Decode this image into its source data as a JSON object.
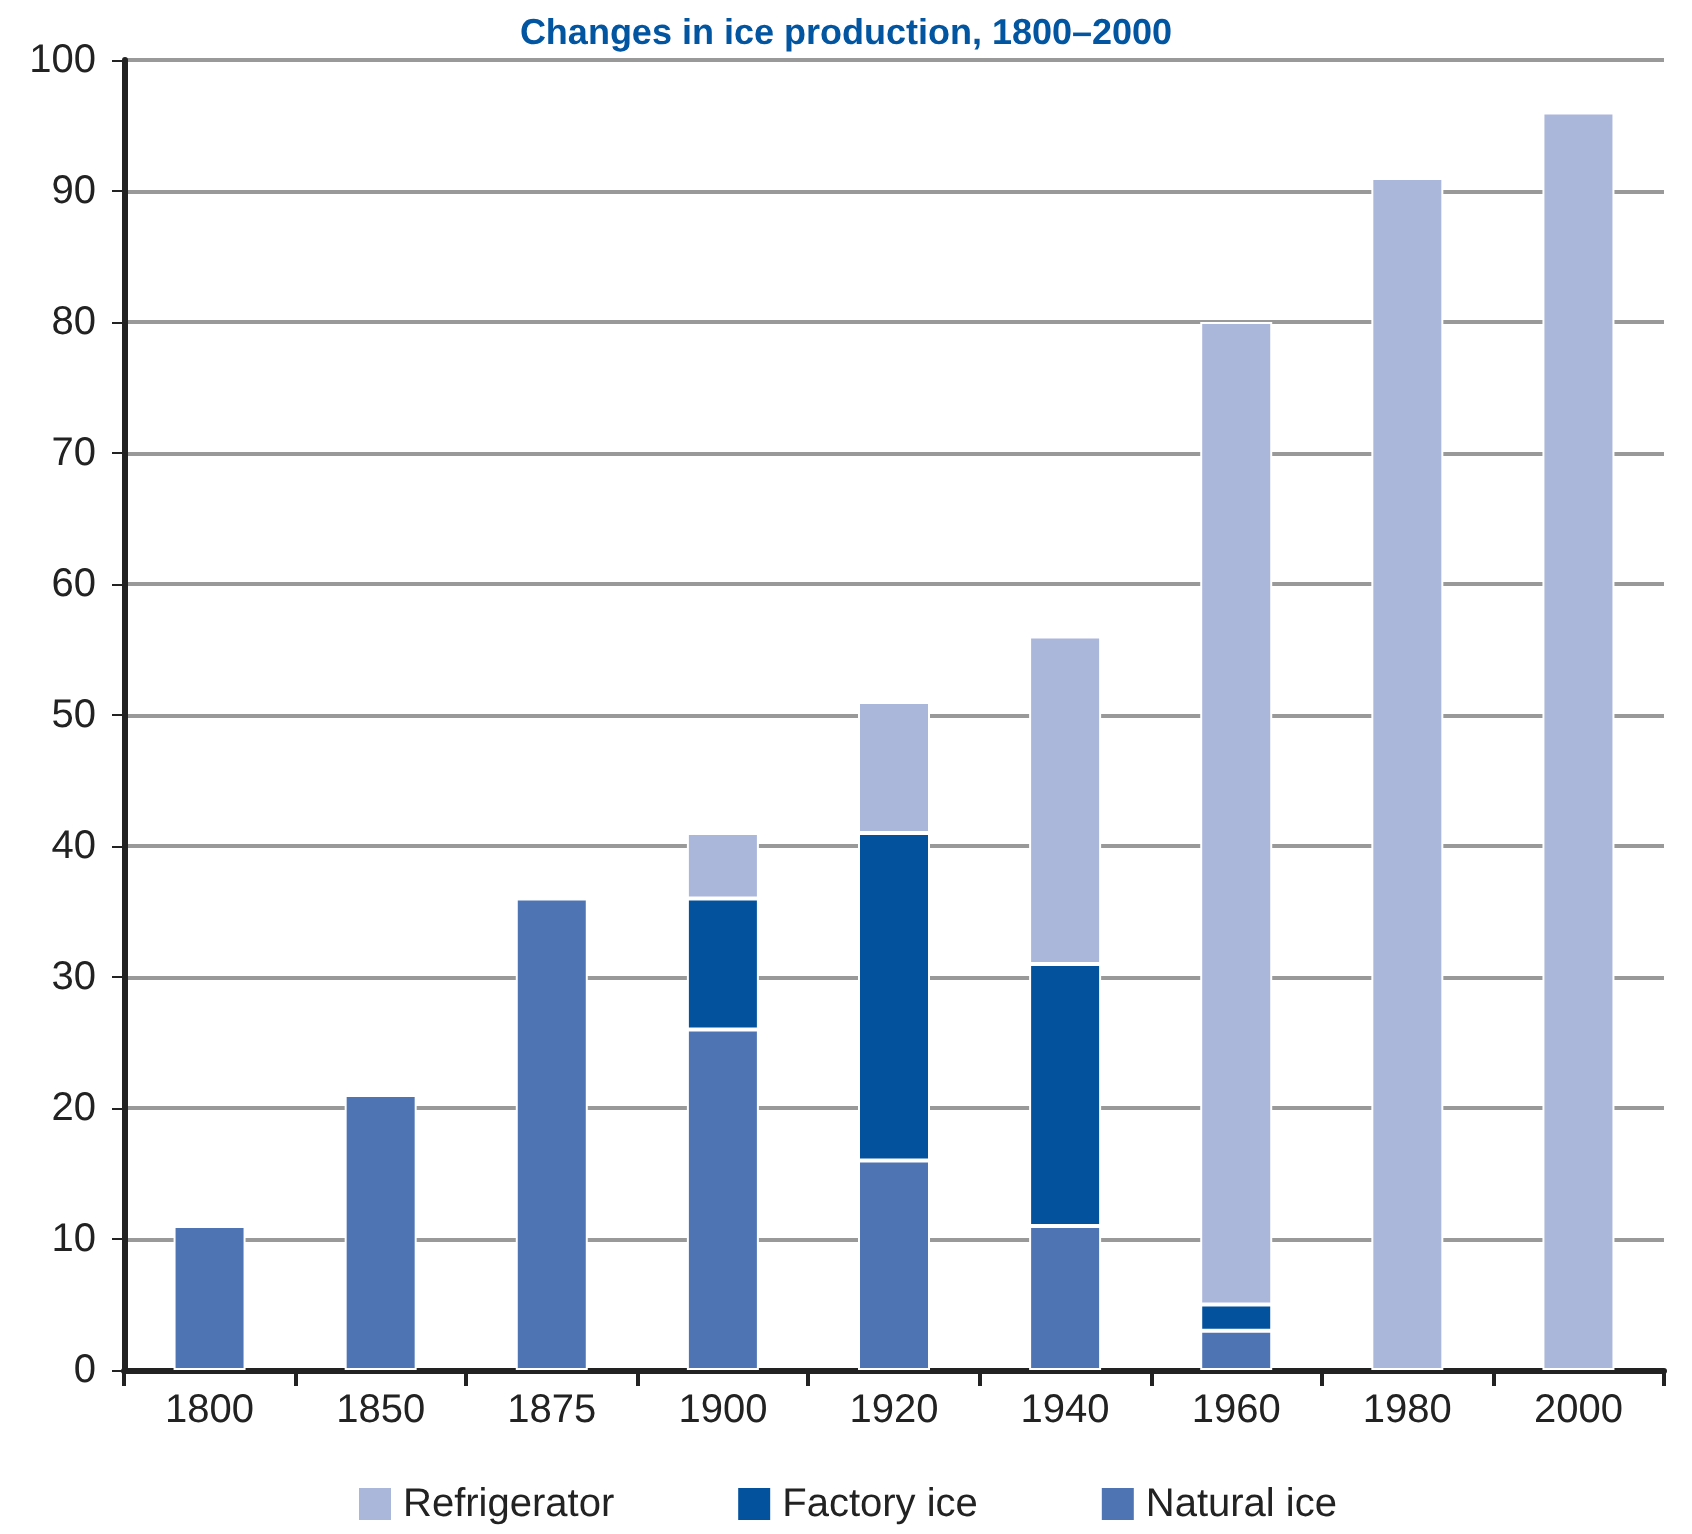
{
  "chart_data": {
    "type": "bar",
    "title": "Changes in ice production, 1800–2000",
    "categories": [
      "1800",
      "1850",
      "1875",
      "1900",
      "1920",
      "1940",
      "1960",
      "1980",
      "2000"
    ],
    "series": [
      {
        "name": "Natural ice",
        "color": "#4f74b4",
        "values": [
          11,
          21,
          36,
          26,
          16,
          11,
          3,
          null,
          null
        ]
      },
      {
        "name": "Factory ice",
        "color": "#02529e",
        "values": [
          null,
          null,
          null,
          10,
          25,
          20,
          2,
          null,
          null
        ]
      },
      {
        "name": "Refrigerator",
        "color": "#aab6da",
        "values": [
          null,
          null,
          null,
          5,
          10,
          25,
          75,
          91,
          96
        ]
      }
    ],
    "stacked": true,
    "ylim": [
      0,
      100
    ],
    "yticks": [
      0,
      10,
      20,
      30,
      40,
      50,
      60,
      70,
      80,
      90,
      100
    ],
    "grid": "y",
    "legend": "bottom"
  }
}
